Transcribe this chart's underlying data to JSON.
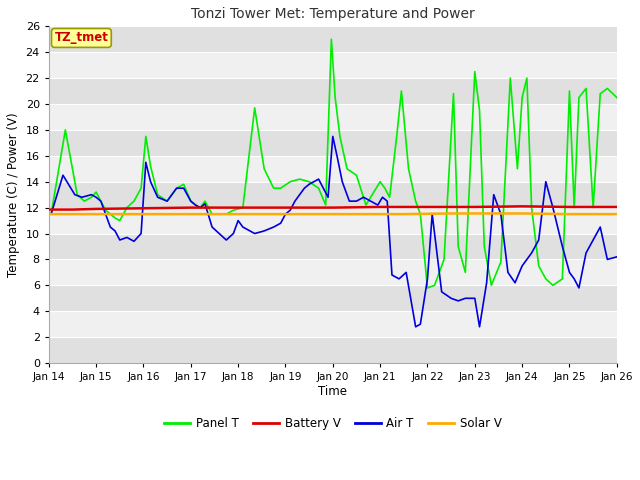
{
  "title": "Tonzi Tower Met: Temperature and Power",
  "xlabel": "Time",
  "ylabel": "Temperature (C) / Power (V)",
  "xlim": [
    0,
    12
  ],
  "ylim": [
    0,
    26
  ],
  "yticks": [
    0,
    2,
    4,
    6,
    8,
    10,
    12,
    14,
    16,
    18,
    20,
    22,
    24,
    26
  ],
  "xtick_labels": [
    "Jan 14",
    "Jan 15",
    "Jan 16",
    "Jan 17",
    "Jan 18",
    "Jan 19",
    "Jan 20",
    "Jan 21",
    "Jan 22",
    "Jan 23",
    "Jan 24",
    "Jan 25",
    "Jan 26"
  ],
  "xtick_positions": [
    0,
    1,
    2,
    3,
    4,
    5,
    6,
    7,
    8,
    9,
    10,
    11,
    12
  ],
  "fig_bg_color": "#ffffff",
  "plot_bg_color": "#ffffff",
  "band_color_dark": "#e0e0e0",
  "band_color_light": "#f0f0f0",
  "annotation_text": "TZ_tmet",
  "annotation_color": "#cc0000",
  "annotation_bg": "#ffff99",
  "annotation_edge": "#999900",
  "legend_entries": [
    "Panel T",
    "Battery V",
    "Air T",
    "Solar V"
  ],
  "legend_colors": [
    "#00ee00",
    "#dd0000",
    "#0000dd",
    "#ffaa00"
  ],
  "panel_T_x": [
    0.05,
    0.35,
    0.6,
    0.75,
    0.9,
    1.0,
    1.1,
    1.2,
    1.3,
    1.4,
    1.5,
    1.65,
    1.8,
    1.95,
    2.05,
    2.15,
    2.3,
    2.5,
    2.7,
    2.85,
    3.0,
    3.1,
    3.2,
    3.3,
    3.45,
    3.6,
    3.75,
    3.9,
    4.1,
    4.35,
    4.55,
    4.75,
    4.9,
    5.1,
    5.3,
    5.5,
    5.7,
    5.85,
    5.97,
    6.05,
    6.15,
    6.3,
    6.5,
    6.7,
    7.0,
    7.1,
    7.2,
    7.35,
    7.45,
    7.6,
    7.75,
    7.85,
    8.0,
    8.15,
    8.35,
    8.55,
    8.65,
    8.8,
    9.0,
    9.1,
    9.2,
    9.35,
    9.55,
    9.75,
    9.9,
    10.0,
    10.1,
    10.2,
    10.35,
    10.5,
    10.65,
    10.85,
    11.0,
    11.1,
    11.2,
    11.35,
    11.5,
    11.65,
    11.8,
    12.0
  ],
  "panel_T_y": [
    11.5,
    18.0,
    13.0,
    12.5,
    12.8,
    13.2,
    12.5,
    11.8,
    11.5,
    11.2,
    11.0,
    12.0,
    12.5,
    13.5,
    17.5,
    15.2,
    13.0,
    12.5,
    13.5,
    13.8,
    12.5,
    12.2,
    12.0,
    12.5,
    11.5,
    11.5,
    11.5,
    11.8,
    12.0,
    19.7,
    15.0,
    13.5,
    13.5,
    14.0,
    14.2,
    14.0,
    13.5,
    12.2,
    25.0,
    20.5,
    17.5,
    15.0,
    14.5,
    12.2,
    14.0,
    13.5,
    12.8,
    17.5,
    21.0,
    15.0,
    12.5,
    11.5,
    5.8,
    6.0,
    8.0,
    20.8,
    9.0,
    7.0,
    22.5,
    19.5,
    9.0,
    6.0,
    7.8,
    22.0,
    15.0,
    20.5,
    22.0,
    12.0,
    7.5,
    6.5,
    6.0,
    6.5,
    21.0,
    12.0,
    20.5,
    21.2,
    12.0,
    20.8,
    21.2,
    20.5
  ],
  "battery_V_x": [
    0,
    0.5,
    1,
    2,
    3,
    4,
    5,
    6,
    7,
    8,
    9,
    10,
    11,
    12
  ],
  "battery_V_y": [
    11.85,
    11.85,
    11.9,
    11.95,
    12.0,
    12.0,
    12.0,
    12.0,
    12.05,
    12.05,
    12.05,
    12.1,
    12.05,
    12.05
  ],
  "air_T_x": [
    0.05,
    0.3,
    0.55,
    0.7,
    0.9,
    1.0,
    1.1,
    1.2,
    1.3,
    1.4,
    1.5,
    1.65,
    1.8,
    1.95,
    2.05,
    2.15,
    2.3,
    2.5,
    2.7,
    2.85,
    3.0,
    3.1,
    3.2,
    3.3,
    3.45,
    3.6,
    3.75,
    3.9,
    4.0,
    4.1,
    4.35,
    4.55,
    4.75,
    4.9,
    5.0,
    5.1,
    5.2,
    5.3,
    5.4,
    5.5,
    5.6,
    5.7,
    5.8,
    5.9,
    6.0,
    6.1,
    6.2,
    6.35,
    6.5,
    6.65,
    6.8,
    6.95,
    7.05,
    7.15,
    7.25,
    7.4,
    7.55,
    7.75,
    7.85,
    8.0,
    8.1,
    8.3,
    8.5,
    8.65,
    8.8,
    9.0,
    9.1,
    9.25,
    9.4,
    9.55,
    9.7,
    9.85,
    10.0,
    10.1,
    10.2,
    10.35,
    10.5,
    10.65,
    10.85,
    11.0,
    11.1,
    11.2,
    11.35,
    11.5,
    11.65,
    11.8,
    12.0
  ],
  "air_T_y": [
    11.5,
    14.5,
    13.0,
    12.8,
    13.0,
    12.8,
    12.5,
    11.5,
    10.5,
    10.2,
    9.5,
    9.7,
    9.4,
    10.0,
    15.5,
    14.0,
    12.8,
    12.5,
    13.5,
    13.5,
    12.5,
    12.2,
    12.0,
    12.3,
    10.5,
    10.0,
    9.5,
    10.0,
    11.0,
    10.5,
    10.0,
    10.2,
    10.5,
    10.8,
    11.5,
    11.8,
    12.5,
    13.0,
    13.5,
    13.8,
    14.0,
    14.2,
    13.5,
    12.8,
    17.5,
    15.8,
    14.0,
    12.5,
    12.5,
    12.8,
    12.5,
    12.2,
    12.8,
    12.5,
    6.8,
    6.5,
    7.0,
    2.8,
    3.0,
    6.5,
    11.5,
    5.5,
    5.0,
    4.8,
    5.0,
    5.0,
    2.8,
    6.2,
    13.0,
    11.5,
    7.0,
    6.2,
    7.5,
    8.0,
    8.5,
    9.5,
    14.0,
    12.0,
    9.0,
    7.0,
    6.5,
    5.8,
    8.5,
    9.5,
    10.5,
    8.0,
    8.2
  ],
  "solar_V_x": [
    0,
    2,
    4,
    6,
    7.5,
    8.5,
    9.0,
    10,
    11,
    12
  ],
  "solar_V_y": [
    11.5,
    11.5,
    11.5,
    11.5,
    11.5,
    11.55,
    11.55,
    11.55,
    11.5,
    11.5
  ]
}
